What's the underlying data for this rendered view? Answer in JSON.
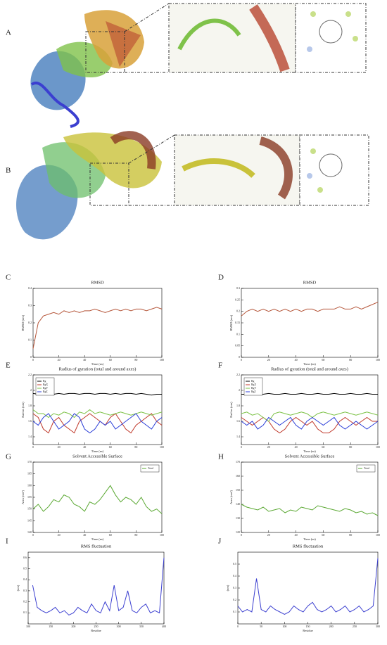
{
  "figure": {
    "protein_panels": [
      {
        "label": "A"
      },
      {
        "label": "B"
      }
    ]
  },
  "chart_data": [
    {
      "type": "line",
      "panel": "C",
      "title": "RMSD",
      "xlabel": "Time (ns)",
      "ylabel": "RMSD (nm)",
      "x": [
        0,
        4,
        8,
        12,
        16,
        20,
        24,
        28,
        32,
        36,
        40,
        44,
        48,
        52,
        56,
        60,
        64,
        68,
        72,
        76,
        80,
        84,
        88,
        92,
        96,
        100
      ],
      "series": [
        {
          "name": "RMSD",
          "color": "#b5563a",
          "values": [
            0.05,
            0.2,
            0.24,
            0.25,
            0.26,
            0.25,
            0.27,
            0.26,
            0.27,
            0.26,
            0.27,
            0.27,
            0.28,
            0.27,
            0.26,
            0.27,
            0.28,
            0.27,
            0.28,
            0.27,
            0.28,
            0.28,
            0.27,
            0.28,
            0.29,
            0.28
          ]
        }
      ],
      "xlim": [
        0,
        100
      ],
      "ylim": [
        0,
        0.4
      ],
      "xticks": [
        0,
        20,
        40,
        60,
        80,
        100
      ],
      "yticks": [
        0,
        0.1,
        0.2,
        0.3,
        0.4
      ]
    },
    {
      "type": "line",
      "panel": "D",
      "title": "RMSD",
      "xlabel": "Time (ns)",
      "ylabel": "RMSD (nm)",
      "x": [
        0,
        4,
        8,
        12,
        16,
        20,
        24,
        28,
        32,
        36,
        40,
        44,
        48,
        52,
        56,
        60,
        64,
        68,
        72,
        76,
        80,
        84,
        88,
        92,
        96,
        100
      ],
      "series": [
        {
          "name": "RMSD",
          "color": "#b5563a",
          "values": [
            0.18,
            0.2,
            0.21,
            0.2,
            0.21,
            0.2,
            0.21,
            0.2,
            0.21,
            0.2,
            0.21,
            0.2,
            0.21,
            0.21,
            0.2,
            0.21,
            0.21,
            0.21,
            0.22,
            0.21,
            0.21,
            0.22,
            0.21,
            0.22,
            0.23,
            0.24
          ]
        }
      ],
      "xlim": [
        0,
        100
      ],
      "ylim": [
        0,
        0.3
      ],
      "xticks": [
        0,
        20,
        40,
        60,
        80,
        100
      ],
      "yticks": [
        0,
        0.05,
        0.1,
        0.15,
        0.2,
        0.25,
        0.3
      ]
    },
    {
      "type": "line",
      "panel": "E",
      "title": "Radius of gyration (total and around axes)",
      "xlabel": "Time (ns)",
      "ylabel": "Radius (nm)",
      "legend": "upper left",
      "x": [
        0,
        4,
        8,
        12,
        16,
        20,
        24,
        28,
        32,
        36,
        40,
        44,
        48,
        52,
        56,
        60,
        64,
        68,
        72,
        76,
        80,
        84,
        88,
        92,
        96,
        100
      ],
      "series": [
        {
          "name": "Rg",
          "color": "#000000",
          "values": [
            1.96,
            1.95,
            1.96,
            1.96,
            1.95,
            1.96,
            1.95,
            1.96,
            1.96,
            1.95,
            1.96,
            1.96,
            1.95,
            1.96,
            1.96,
            1.95,
            1.96,
            1.95,
            1.96,
            1.96,
            1.95,
            1.96,
            1.95,
            1.94,
            1.95,
            1.95
          ]
        },
        {
          "name": "RgX",
          "color": "#c0392b",
          "values": [
            1.7,
            1.65,
            1.5,
            1.45,
            1.6,
            1.65,
            1.55,
            1.5,
            1.45,
            1.6,
            1.65,
            1.7,
            1.65,
            1.6,
            1.55,
            1.65,
            1.7,
            1.6,
            1.5,
            1.45,
            1.55,
            1.6,
            1.65,
            1.7,
            1.6,
            1.55
          ]
        },
        {
          "name": "RgY",
          "color": "#7ac143",
          "values": [
            1.75,
            1.7,
            1.7,
            1.65,
            1.7,
            1.68,
            1.72,
            1.7,
            1.65,
            1.72,
            1.7,
            1.75,
            1.7,
            1.72,
            1.7,
            1.68,
            1.7,
            1.72,
            1.7,
            1.68,
            1.7,
            1.72,
            1.7,
            1.68,
            1.7,
            1.72
          ]
        },
        {
          "name": "RgZ",
          "color": "#2c3fd8",
          "values": [
            1.6,
            1.55,
            1.65,
            1.7,
            1.6,
            1.5,
            1.55,
            1.6,
            1.7,
            1.65,
            1.5,
            1.45,
            1.5,
            1.6,
            1.55,
            1.6,
            1.5,
            1.55,
            1.6,
            1.65,
            1.7,
            1.6,
            1.55,
            1.5,
            1.6,
            1.65
          ]
        }
      ],
      "xlim": [
        0,
        100
      ],
      "ylim": [
        1.3,
        2.2
      ],
      "xticks": [
        0,
        20,
        40,
        60,
        80,
        100
      ],
      "yticks": [
        1.4,
        1.6,
        1.8,
        2,
        2.2
      ]
    },
    {
      "type": "line",
      "panel": "F",
      "title": "Radius of gyration (total and around axes)",
      "xlabel": "Time (ns)",
      "ylabel": "Radius (nm)",
      "legend": "upper left",
      "x": [
        0,
        4,
        8,
        12,
        16,
        20,
        24,
        28,
        32,
        36,
        40,
        44,
        48,
        52,
        56,
        60,
        64,
        68,
        72,
        76,
        80,
        84,
        88,
        92,
        96,
        100
      ],
      "series": [
        {
          "name": "Rg",
          "color": "#000000",
          "values": [
            1.95,
            1.95,
            1.96,
            1.95,
            1.95,
            1.96,
            1.95,
            1.95,
            1.96,
            1.95,
            1.95,
            1.96,
            1.95,
            1.95,
            1.96,
            1.95,
            1.95,
            1.96,
            1.95,
            1.95,
            1.96,
            1.95,
            1.95,
            1.96,
            1.95,
            1.95
          ]
        },
        {
          "name": "RgX",
          "color": "#c0392b",
          "values": [
            1.65,
            1.6,
            1.55,
            1.6,
            1.65,
            1.6,
            1.5,
            1.45,
            1.5,
            1.6,
            1.65,
            1.6,
            1.55,
            1.6,
            1.5,
            1.45,
            1.45,
            1.5,
            1.6,
            1.65,
            1.6,
            1.55,
            1.6,
            1.65,
            1.6,
            1.6
          ]
        },
        {
          "name": "RgY",
          "color": "#7ac143",
          "values": [
            1.7,
            1.72,
            1.68,
            1.7,
            1.65,
            1.6,
            1.7,
            1.72,
            1.7,
            1.68,
            1.7,
            1.72,
            1.7,
            1.65,
            1.7,
            1.72,
            1.7,
            1.68,
            1.7,
            1.72,
            1.7,
            1.68,
            1.7,
            1.72,
            1.7,
            1.68
          ]
        },
        {
          "name": "RgZ",
          "color": "#2c3fd8",
          "values": [
            1.6,
            1.55,
            1.6,
            1.5,
            1.55,
            1.65,
            1.6,
            1.55,
            1.6,
            1.65,
            1.55,
            1.5,
            1.6,
            1.65,
            1.6,
            1.55,
            1.6,
            1.65,
            1.55,
            1.5,
            1.55,
            1.6,
            1.55,
            1.5,
            1.55,
            1.6
          ]
        }
      ],
      "xlim": [
        0,
        100
      ],
      "ylim": [
        1.3,
        2.2
      ],
      "xticks": [
        0,
        20,
        40,
        60,
        80,
        100
      ],
      "yticks": [
        1.4,
        1.6,
        1.8,
        2,
        2.2
      ]
    },
    {
      "type": "line",
      "panel": "G",
      "title": "Solvent Accessible Surface",
      "xlabel": "Time (ns)",
      "ylabel": "Area (nm²)",
      "legend": "upper right",
      "x": [
        0,
        4,
        8,
        12,
        16,
        20,
        24,
        28,
        32,
        36,
        40,
        44,
        48,
        52,
        56,
        60,
        64,
        68,
        72,
        76,
        80,
        84,
        88,
        92,
        96,
        100
      ],
      "series": [
        {
          "name": "Total",
          "color": "#5aa832",
          "values": [
            150,
            152,
            149,
            151,
            154,
            153,
            156,
            155,
            152,
            151,
            149,
            153,
            152,
            154,
            157,
            160,
            156,
            153,
            155,
            154,
            152,
            155,
            151,
            149,
            150,
            148
          ]
        }
      ],
      "xlim": [
        0,
        100
      ],
      "ylim": [
        140,
        170
      ],
      "xticks": [
        0,
        20,
        40,
        60,
        80,
        100
      ],
      "yticks": [
        140,
        145,
        150,
        155,
        160,
        165,
        170
      ]
    },
    {
      "type": "line",
      "panel": "H",
      "title": "Solvent Accessible Surface",
      "xlabel": "Time (ns)",
      "ylabel": "Area (nm²)",
      "legend": "upper right",
      "x": [
        0,
        4,
        8,
        12,
        16,
        20,
        24,
        28,
        32,
        36,
        40,
        44,
        48,
        52,
        56,
        60,
        64,
        68,
        72,
        76,
        80,
        84,
        88,
        92,
        96,
        100
      ],
      "series": [
        {
          "name": "Total",
          "color": "#5aa832",
          "values": [
            140,
            138,
            137,
            136,
            138,
            135,
            136,
            137,
            134,
            136,
            135,
            138,
            137,
            136,
            139,
            138,
            137,
            136,
            135,
            137,
            136,
            134,
            135,
            133,
            134,
            132
          ]
        }
      ],
      "xlim": [
        0,
        100
      ],
      "ylim": [
        120,
        170
      ],
      "xticks": [
        0,
        20,
        40,
        60,
        80,
        100
      ],
      "yticks": [
        120,
        130,
        140,
        150,
        160,
        170
      ]
    },
    {
      "type": "line",
      "panel": "I",
      "title": "RMS fluctuation",
      "xlabel": "Residue",
      "ylabel": "(nm)",
      "x": [
        110,
        120,
        130,
        140,
        150,
        160,
        170,
        180,
        190,
        200,
        210,
        220,
        230,
        240,
        250,
        260,
        270,
        280,
        290,
        300,
        310,
        320,
        330,
        340,
        350,
        360,
        370,
        380,
        390,
        400
      ],
      "series": [
        {
          "name": "RMSF",
          "color": "#3b3fd0",
          "values": [
            0.35,
            0.15,
            0.12,
            0.1,
            0.12,
            0.15,
            0.1,
            0.12,
            0.08,
            0.1,
            0.15,
            0.12,
            0.1,
            0.18,
            0.12,
            0.1,
            0.2,
            0.12,
            0.35,
            0.12,
            0.15,
            0.3,
            0.12,
            0.1,
            0.15,
            0.18,
            0.1,
            0.12,
            0.1,
            0.6
          ]
        }
      ],
      "xlim": [
        100,
        400
      ],
      "ylim": [
        0,
        0.65
      ],
      "xticks": [
        100,
        150,
        200,
        250,
        300,
        350,
        400
      ],
      "yticks": [
        0.1,
        0.2,
        0.3,
        0.4,
        0.5,
        0.6
      ]
    },
    {
      "type": "line",
      "panel": "J",
      "title": "RMS fluctuation",
      "xlabel": "Residue",
      "ylabel": "(nm)",
      "x": [
        0,
        10,
        20,
        30,
        40,
        50,
        60,
        70,
        80,
        90,
        100,
        110,
        120,
        130,
        140,
        150,
        160,
        170,
        180,
        190,
        200,
        210,
        220,
        230,
        240,
        250,
        260,
        270,
        280,
        290,
        300
      ],
      "series": [
        {
          "name": "RMSF",
          "color": "#3b3fd0",
          "values": [
            0.15,
            0.1,
            0.12,
            0.1,
            0.38,
            0.12,
            0.1,
            0.15,
            0.12,
            0.1,
            0.08,
            0.1,
            0.15,
            0.12,
            0.1,
            0.15,
            0.18,
            0.12,
            0.1,
            0.12,
            0.15,
            0.1,
            0.12,
            0.15,
            0.1,
            0.12,
            0.15,
            0.1,
            0.12,
            0.15,
            0.55
          ]
        }
      ],
      "xlim": [
        0,
        300
      ],
      "ylim": [
        0,
        0.6
      ],
      "xticks": [
        0,
        50,
        100,
        150,
        200,
        250,
        300
      ],
      "yticks": [
        0.1,
        0.2,
        0.3,
        0.4,
        0.5
      ]
    }
  ]
}
